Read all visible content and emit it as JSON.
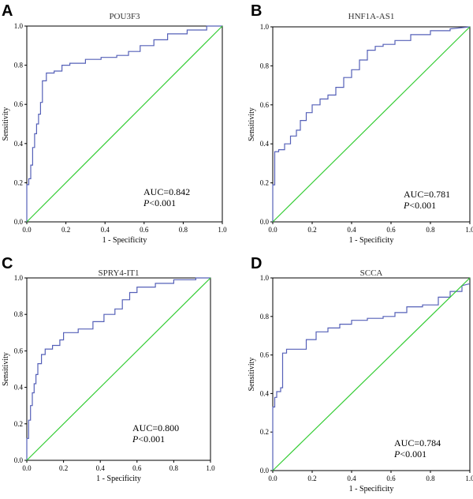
{
  "chart_data": [
    {
      "type": "line",
      "panel": "A",
      "title": "POU3F3",
      "xlabel": "1 - Specificity",
      "ylabel": "Sensitivity",
      "xlim": [
        0,
        1
      ],
      "ylim": [
        0,
        1
      ],
      "xticks": [
        "0.0",
        "0.2",
        "0.4",
        "0.6",
        "0.8",
        "1.0"
      ],
      "yticks": [
        "0.0",
        "0.2",
        "0.4",
        "0.6",
        "0.8",
        "1.0"
      ],
      "auc_text": "AUC=0.842",
      "p_symbol": "P",
      "p_text": "<0.001",
      "series": [
        {
          "name": "ROC",
          "x": [
            0,
            0,
            0.01,
            0.01,
            0.02,
            0.02,
            0.03,
            0.03,
            0.04,
            0.04,
            0.05,
            0.05,
            0.06,
            0.06,
            0.07,
            0.07,
            0.08,
            0.08,
            0.1,
            0.1,
            0.14,
            0.14,
            0.18,
            0.18,
            0.22,
            0.22,
            0.3,
            0.3,
            0.38,
            0.38,
            0.46,
            0.46,
            0.52,
            0.52,
            0.58,
            0.58,
            0.65,
            0.65,
            0.72,
            0.72,
            0.82,
            0.82,
            0.92,
            0.92,
            1.0
          ],
          "y": [
            0,
            0.19,
            0.19,
            0.22,
            0.22,
            0.29,
            0.29,
            0.38,
            0.38,
            0.45,
            0.45,
            0.5,
            0.5,
            0.55,
            0.55,
            0.61,
            0.61,
            0.72,
            0.72,
            0.76,
            0.76,
            0.77,
            0.77,
            0.8,
            0.8,
            0.81,
            0.81,
            0.83,
            0.83,
            0.84,
            0.84,
            0.85,
            0.85,
            0.87,
            0.87,
            0.9,
            0.9,
            0.93,
            0.93,
            0.96,
            0.96,
            0.98,
            0.98,
            1.0,
            1.0
          ]
        },
        {
          "name": "Reference",
          "x": [
            0,
            1
          ],
          "y": [
            0,
            1
          ]
        }
      ]
    },
    {
      "type": "line",
      "panel": "B",
      "title": "HNF1A-AS1",
      "xlabel": "1 - Specificity",
      "ylabel": "Sensitivity",
      "xlim": [
        0,
        1
      ],
      "ylim": [
        0,
        1
      ],
      "xticks": [
        "0.0",
        "0.2",
        "0.4",
        "0.6",
        "0.8",
        "1.0"
      ],
      "yticks": [
        "0.0",
        "0.2",
        "0.4",
        "0.6",
        "0.8",
        "1.0"
      ],
      "auc_text": "AUC=0.781",
      "p_symbol": "P",
      "p_text": "<0.001",
      "series": [
        {
          "name": "ROC",
          "x": [
            0,
            0,
            0.01,
            0.01,
            0.03,
            0.03,
            0.06,
            0.06,
            0.09,
            0.09,
            0.12,
            0.12,
            0.14,
            0.14,
            0.17,
            0.17,
            0.2,
            0.2,
            0.24,
            0.24,
            0.28,
            0.28,
            0.32,
            0.32,
            0.36,
            0.36,
            0.4,
            0.4,
            0.44,
            0.44,
            0.48,
            0.48,
            0.52,
            0.52,
            0.56,
            0.56,
            0.62,
            0.62,
            0.7,
            0.7,
            0.8,
            0.8,
            0.9,
            0.9,
            1.0
          ],
          "y": [
            0,
            0.19,
            0.19,
            0.36,
            0.36,
            0.37,
            0.37,
            0.4,
            0.4,
            0.44,
            0.44,
            0.47,
            0.47,
            0.52,
            0.52,
            0.56,
            0.56,
            0.6,
            0.6,
            0.63,
            0.63,
            0.65,
            0.65,
            0.69,
            0.69,
            0.74,
            0.74,
            0.78,
            0.78,
            0.83,
            0.83,
            0.88,
            0.88,
            0.9,
            0.9,
            0.91,
            0.91,
            0.93,
            0.93,
            0.96,
            0.96,
            0.98,
            0.98,
            0.99,
            1.0
          ]
        },
        {
          "name": "Reference",
          "x": [
            0,
            1
          ],
          "y": [
            0,
            1
          ]
        }
      ]
    },
    {
      "type": "line",
      "panel": "C",
      "title": "SPRY4-IT1",
      "xlabel": "1 - Specificity",
      "ylabel": "Sensitivity",
      "xlim": [
        0,
        1
      ],
      "ylim": [
        0,
        1
      ],
      "xticks": [
        "0.0",
        "0.2",
        "0.4",
        "0.6",
        "0.8",
        "1.0"
      ],
      "yticks": [
        "0.0",
        "0.2",
        "0.4",
        "0.6",
        "0.8",
        "1.0"
      ],
      "auc_text": "AUC=0.800",
      "p_symbol": "P",
      "p_text": "<0.001",
      "series": [
        {
          "name": "ROC",
          "x": [
            0,
            0,
            0.01,
            0.01,
            0.02,
            0.02,
            0.03,
            0.03,
            0.04,
            0.04,
            0.05,
            0.05,
            0.06,
            0.06,
            0.08,
            0.08,
            0.1,
            0.1,
            0.14,
            0.14,
            0.18,
            0.18,
            0.2,
            0.2,
            0.28,
            0.28,
            0.36,
            0.36,
            0.42,
            0.42,
            0.48,
            0.48,
            0.52,
            0.52,
            0.56,
            0.56,
            0.6,
            0.6,
            0.7,
            0.7,
            0.8,
            0.8,
            0.92,
            0.92,
            1.0
          ],
          "y": [
            0,
            0.12,
            0.12,
            0.22,
            0.22,
            0.3,
            0.3,
            0.37,
            0.37,
            0.42,
            0.42,
            0.47,
            0.47,
            0.53,
            0.53,
            0.58,
            0.58,
            0.61,
            0.61,
            0.63,
            0.63,
            0.66,
            0.66,
            0.7,
            0.7,
            0.72,
            0.72,
            0.76,
            0.76,
            0.8,
            0.8,
            0.83,
            0.83,
            0.88,
            0.88,
            0.92,
            0.92,
            0.95,
            0.95,
            0.97,
            0.97,
            0.99,
            0.99,
            1.0,
            1.0
          ]
        },
        {
          "name": "Reference",
          "x": [
            0,
            1
          ],
          "y": [
            0,
            1
          ]
        }
      ]
    },
    {
      "type": "line",
      "panel": "D",
      "title": "SCCA",
      "xlabel": "1 - Specificity",
      "ylabel": "Sensitivity",
      "xlim": [
        0,
        1
      ],
      "ylim": [
        0,
        1
      ],
      "xticks": [
        "0.0",
        "0.2",
        "0.4",
        "0.6",
        "0.8",
        "1.0"
      ],
      "yticks": [
        "0.0",
        "0.2",
        "0.4",
        "0.6",
        "0.8",
        "1.0"
      ],
      "auc_text": "AUC=0.784",
      "p_symbol": "P",
      "p_text": "<0.001",
      "series": [
        {
          "name": "ROC",
          "x": [
            0,
            0,
            0.01,
            0.01,
            0.02,
            0.02,
            0.04,
            0.04,
            0.05,
            0.05,
            0.07,
            0.07,
            0.17,
            0.17,
            0.22,
            0.22,
            0.28,
            0.28,
            0.34,
            0.34,
            0.4,
            0.4,
            0.48,
            0.48,
            0.56,
            0.56,
            0.62,
            0.62,
            0.68,
            0.68,
            0.76,
            0.76,
            0.84,
            0.84,
            0.9,
            0.9,
            0.96,
            0.96,
            1.0
          ],
          "y": [
            0,
            0.33,
            0.33,
            0.38,
            0.38,
            0.41,
            0.41,
            0.43,
            0.43,
            0.61,
            0.61,
            0.63,
            0.63,
            0.68,
            0.68,
            0.72,
            0.72,
            0.74,
            0.74,
            0.76,
            0.76,
            0.78,
            0.78,
            0.79,
            0.79,
            0.8,
            0.8,
            0.82,
            0.82,
            0.85,
            0.85,
            0.86,
            0.86,
            0.9,
            0.9,
            0.93,
            0.93,
            0.96,
            0.97
          ]
        },
        {
          "name": "Reference",
          "x": [
            0,
            1
          ],
          "y": [
            0,
            1
          ]
        }
      ]
    }
  ]
}
